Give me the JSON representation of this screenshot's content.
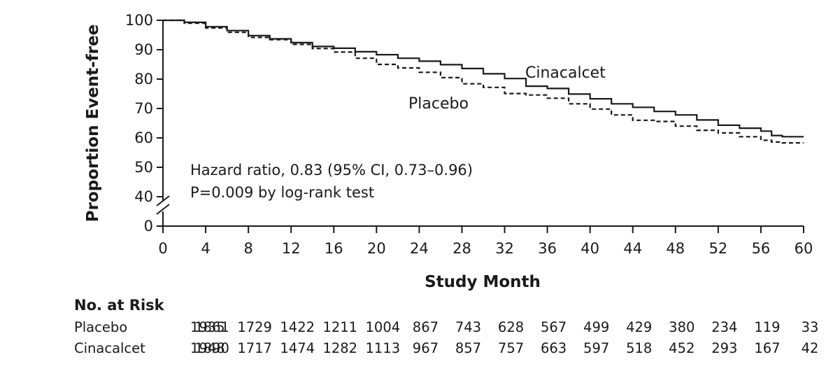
{
  "chart_data": {
    "type": "line",
    "xlabel": "Study Month",
    "ylabel": "Proportion Event-free",
    "x_ticks": [
      "0",
      "4",
      "8",
      "12",
      "16",
      "20",
      "24",
      "28",
      "32",
      "36",
      "40",
      "44",
      "48",
      "52",
      "56",
      "60"
    ],
    "y_ticks": [
      "0",
      "40",
      "50",
      "60",
      "70",
      "80",
      "90",
      "100"
    ],
    "xlim": [
      0,
      60
    ],
    "ylim_upper": [
      40,
      100
    ],
    "axis_break": true,
    "series": [
      {
        "name": "Cinacalcet",
        "style": "solid",
        "color": "#1a1a1a",
        "x": [
          0,
          2,
          4,
          6,
          8,
          10,
          12,
          14,
          16,
          18,
          20,
          22,
          24,
          26,
          28,
          30,
          32,
          34,
          36,
          38,
          40,
          42,
          44,
          46,
          48,
          50,
          52,
          54,
          56,
          57,
          58,
          60
        ],
        "y": [
          100,
          99.3,
          97.8,
          96.5,
          94.8,
          93.7,
          92.4,
          91.1,
          90.5,
          89.3,
          88.3,
          87.1,
          86.1,
          84.9,
          83.6,
          81.8,
          80.2,
          77.6,
          76.8,
          74.9,
          73.3,
          71.6,
          70.4,
          69.0,
          67.8,
          66.1,
          64.3,
          63.3,
          62.3,
          60.8,
          60.4,
          60.4
        ]
      },
      {
        "name": "Placebo",
        "style": "dashed",
        "color": "#1a1a1a",
        "x": [
          0,
          2,
          4,
          6,
          8,
          10,
          12,
          14,
          16,
          18,
          20,
          22,
          24,
          26,
          28,
          30,
          32,
          34,
          36,
          38,
          40,
          42,
          44,
          46,
          48,
          50,
          52,
          54,
          56,
          57,
          58,
          60
        ],
        "y": [
          100,
          99.0,
          97.4,
          95.9,
          94.2,
          93.4,
          91.8,
          90.4,
          89.2,
          87.1,
          85.0,
          83.8,
          82.3,
          80.5,
          78.4,
          77.2,
          75.1,
          74.6,
          73.5,
          71.6,
          69.8,
          67.8,
          66.0,
          65.6,
          64.0,
          62.6,
          61.7,
          60.4,
          59.2,
          58.6,
          58.3,
          58.3
        ]
      }
    ],
    "series_labels": [
      "Cinacalcet",
      "Placebo"
    ],
    "annotations": [
      "Hazard ratio, 0.83 (95% CI, 0.73–0.96)",
      "P=0.009 by log-rank test"
    ],
    "risk_table": {
      "title": "No. at Risk",
      "rows": [
        {
          "label": "Placebo",
          "values": [
            "1935",
            "1861",
            "1729",
            "1422",
            "1211",
            "1004",
            "867",
            "743",
            "628",
            "567",
            "499",
            "429",
            "380",
            "234",
            "119",
            "33"
          ]
        },
        {
          "label": "Cinacalcet",
          "values": [
            "1948",
            "1890",
            "1717",
            "1474",
            "1282",
            "1113",
            "967",
            "857",
            "757",
            "663",
            "597",
            "518",
            "452",
            "293",
            "167",
            "42"
          ]
        }
      ]
    }
  }
}
